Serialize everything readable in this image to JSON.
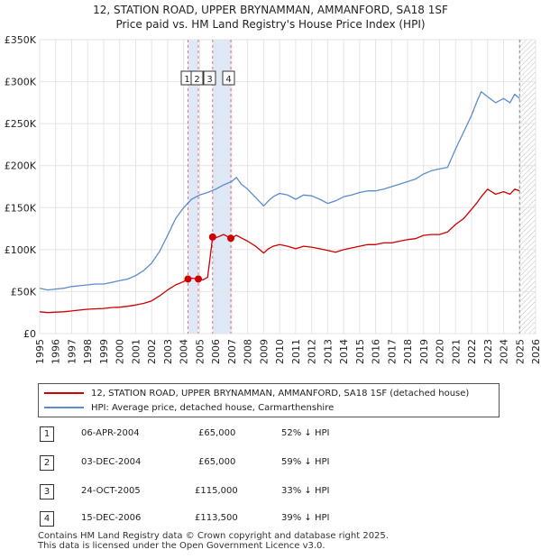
{
  "title_line1": "12, STATION ROAD, UPPER BRYNAMMAN, AMMANFORD, SA18 1SF",
  "title_line2": "Price paid vs. HM Land Registry's House Price Index (HPI)",
  "chart_data": {
    "type": "line",
    "title": "12, STATION ROAD, UPPER BRYNAMMAN, AMMANFORD, SA18 1SF — Price paid vs. HM Land Registry's House Price Index (HPI)",
    "xlabel": "",
    "ylabel": "",
    "xlim": [
      1995,
      2026
    ],
    "ylim": [
      0,
      350000
    ],
    "y_ticks": [
      0,
      50000,
      100000,
      150000,
      200000,
      250000,
      300000,
      350000
    ],
    "y_tick_labels": [
      "£0",
      "£50K",
      "£100K",
      "£150K",
      "£200K",
      "£250K",
      "£300K",
      "£350K"
    ],
    "x_ticks": [
      1995,
      1996,
      1997,
      1998,
      1999,
      2000,
      2001,
      2002,
      2003,
      2004,
      2005,
      2006,
      2007,
      2008,
      2009,
      2010,
      2011,
      2012,
      2013,
      2014,
      2015,
      2016,
      2017,
      2018,
      2019,
      2020,
      2021,
      2022,
      2023,
      2024,
      2025,
      2026
    ],
    "grid": true,
    "forecast_start": 2025.0,
    "series": [
      {
        "name": "12, STATION ROAD, UPPER BRYNAMMAN, AMMANFORD, SA18 1SF (detached house)",
        "color": "#cc0000",
        "x": [
          1995.0,
          1995.5,
          1996.0,
          1996.5,
          1997.0,
          1997.5,
          1998.0,
          1998.5,
          1999.0,
          1999.5,
          2000.0,
          2000.5,
          2001.0,
          2001.5,
          2002.0,
          2002.5,
          2003.0,
          2003.5,
          2004.0,
          2004.27,
          2004.5,
          2004.92,
          2005.2,
          2005.5,
          2005.81,
          2006.0,
          2006.5,
          2006.95,
          2007.3,
          2007.6,
          2008.0,
          2008.5,
          2009.0,
          2009.3,
          2009.6,
          2010.0,
          2010.5,
          2011.0,
          2011.5,
          2012.0,
          2012.5,
          2013.0,
          2013.5,
          2014.0,
          2014.5,
          2015.0,
          2015.5,
          2016.0,
          2016.5,
          2017.0,
          2017.5,
          2018.0,
          2018.5,
          2019.0,
          2019.5,
          2020.0,
          2020.5,
          2021.0,
          2021.5,
          2022.0,
          2022.3,
          2022.6,
          2023.0,
          2023.5,
          2024.0,
          2024.4,
          2024.7,
          2025.0
        ],
        "values": [
          26000,
          25000,
          25500,
          26000,
          27000,
          28000,
          29000,
          29500,
          30000,
          31000,
          31500,
          32500,
          34000,
          36000,
          39000,
          45000,
          52000,
          58000,
          62000,
          65000,
          66000,
          65000,
          64000,
          67000,
          115000,
          114000,
          118000,
          113500,
          117000,
          114000,
          110000,
          104000,
          96000,
          101000,
          104000,
          106000,
          104000,
          101000,
          104000,
          103000,
          101000,
          99000,
          97000,
          100000,
          102000,
          104000,
          106000,
          106000,
          108000,
          108000,
          110000,
          112000,
          113000,
          117000,
          118000,
          118000,
          121000,
          130000,
          137000,
          148000,
          155000,
          163000,
          172000,
          166000,
          169000,
          166000,
          172000,
          170000
        ]
      },
      {
        "name": "HPI: Average price, detached house, Carmarthenshire",
        "color": "#5b8ccf",
        "x": [
          1995.0,
          1995.5,
          1996.0,
          1996.5,
          1997.0,
          1997.5,
          1998.0,
          1998.5,
          1999.0,
          1999.5,
          2000.0,
          2000.5,
          2001.0,
          2001.5,
          2002.0,
          2002.5,
          2003.0,
          2003.5,
          2004.0,
          2004.5,
          2005.0,
          2005.5,
          2006.0,
          2006.5,
          2007.0,
          2007.3,
          2007.6,
          2008.0,
          2008.5,
          2009.0,
          2009.3,
          2009.6,
          2010.0,
          2010.5,
          2011.0,
          2011.5,
          2012.0,
          2012.5,
          2013.0,
          2013.5,
          2014.0,
          2014.5,
          2015.0,
          2015.5,
          2016.0,
          2016.5,
          2017.0,
          2017.5,
          2018.0,
          2018.5,
          2019.0,
          2019.5,
          2020.0,
          2020.5,
          2021.0,
          2021.5,
          2022.0,
          2022.3,
          2022.6,
          2023.0,
          2023.5,
          2024.0,
          2024.4,
          2024.7,
          2025.0
        ],
        "values": [
          54000,
          52000,
          53000,
          54000,
          56000,
          57000,
          58000,
          59000,
          59000,
          61000,
          63000,
          65000,
          69000,
          75000,
          84000,
          98000,
          117000,
          137000,
          150000,
          160000,
          165000,
          168000,
          172000,
          177000,
          181000,
          186000,
          178000,
          172000,
          162000,
          152000,
          158000,
          163000,
          167000,
          165000,
          160000,
          165000,
          164000,
          160000,
          155000,
          158000,
          163000,
          165000,
          168000,
          170000,
          170000,
          172000,
          175000,
          178000,
          181000,
          184000,
          190000,
          194000,
          196000,
          198000,
          220000,
          240000,
          260000,
          275000,
          288000,
          282000,
          275000,
          280000,
          275000,
          285000,
          280000
        ]
      }
    ],
    "sales": [
      {
        "id": "1",
        "date": "06-APR-2004",
        "x": 2004.27,
        "price": 65000,
        "price_label": "£65,000",
        "hpi": "52% ↓ HPI"
      },
      {
        "id": "2",
        "date": "03-DEC-2004",
        "x": 2004.92,
        "price": 65000,
        "price_label": "£65,000",
        "hpi": "59% ↓ HPI"
      },
      {
        "id": "3",
        "date": "24-OCT-2005",
        "x": 2005.81,
        "price": 115000,
        "price_label": "£115,000",
        "hpi": "33% ↓ HPI"
      },
      {
        "id": "4",
        "date": "15-DEC-2006",
        "x": 2006.95,
        "price": 113500,
        "price_label": "£113,500",
        "hpi": "39% ↓ HPI"
      }
    ]
  },
  "legend": {
    "property_label": "12, STATION ROAD, UPPER BRYNAMMAN, AMMANFORD, SA18 1SF (detached house)",
    "hpi_label": "HPI: Average price, detached house, Carmarthenshire"
  },
  "footer": {
    "line1": "Contains HM Land Registry data © Crown copyright and database right 2025.",
    "line2": "This data is licensed under the Open Government Licence v3.0."
  }
}
